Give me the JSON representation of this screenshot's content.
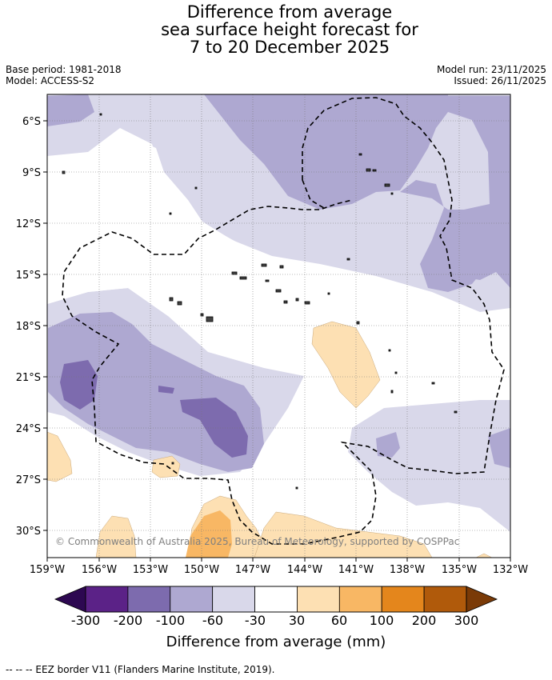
{
  "title": {
    "line1": "Difference from average",
    "line2": "sea surface height forecast for",
    "line3": "7 to 20 December 2025"
  },
  "meta": {
    "base_period": "Base period: 1981-2018",
    "model": "Model: ACCESS-S2",
    "model_run": "Model run: 23/11/2025",
    "issued": "Issued: 26/11/2025"
  },
  "map": {
    "lon_range": [
      -159,
      -132
    ],
    "lat_range": [
      -31.5,
      -4.5
    ],
    "lon_ticks": [
      "159°W",
      "156°W",
      "153°W",
      "150°W",
      "147°W",
      "144°W",
      "141°W",
      "138°W",
      "135°W",
      "132°W"
    ],
    "lat_ticks": [
      "6°S",
      "9°S",
      "12°S",
      "15°S",
      "18°S",
      "21°S",
      "24°S",
      "27°S",
      "30°S"
    ],
    "copyright": "© Commonwealth of Australia 2025, Bureau of Meteorology, supported by COSPPac"
  },
  "colorbar": {
    "title": "Difference from average (mm)",
    "labels": [
      "-300",
      "-200",
      "-100",
      "-60",
      "-30",
      "30",
      "60",
      "100",
      "200",
      "300"
    ],
    "colors": [
      "#5b2287",
      "#7d6bae",
      "#aea8d1",
      "#d9d8ea",
      "#ffffff",
      "#fde0b3",
      "#f8b764",
      "#e4861c",
      "#b05a0b"
    ],
    "under_color": "#2d0851",
    "over_color": "#7a3a07"
  },
  "footer": "--  --  -- EEZ border V11 (Flanders Marine Institute, 2019)."
}
